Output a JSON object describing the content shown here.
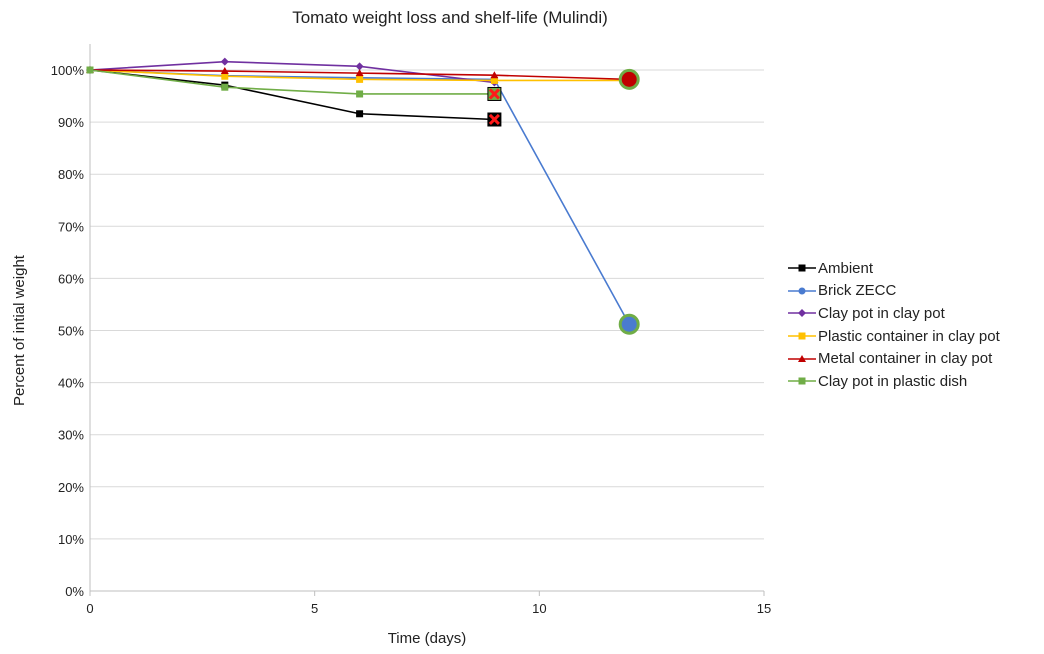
{
  "chart_data": {
    "type": "line",
    "title": "Tomato weight loss and shelf-life (Mulindi)",
    "xlabel": "Time (days)",
    "ylabel": "Percent of intial weight",
    "xlim": [
      0,
      15
    ],
    "ylim": [
      0,
      100
    ],
    "x_ticks": [
      "0",
      "5",
      "10",
      "15"
    ],
    "y_ticks": [
      "0%",
      "10%",
      "20%",
      "30%",
      "40%",
      "50%",
      "60%",
      "70%",
      "80%",
      "90%",
      "100%"
    ],
    "grid": "horizontal",
    "legend_position": "right",
    "series": [
      {
        "name": "Ambient",
        "color": "#000000",
        "marker": "square",
        "points": [
          [
            0,
            100
          ],
          [
            3,
            97.1
          ],
          [
            6,
            91.6
          ],
          [
            9,
            90.5
          ]
        ],
        "end_marker": "x"
      },
      {
        "name": "Brick ZECC",
        "color": "#4a7bd0",
        "marker": "circle",
        "points": [
          [
            0,
            100
          ],
          [
            3,
            98.9
          ],
          [
            6,
            98.5
          ],
          [
            9,
            98.2
          ],
          [
            12,
            51.2
          ]
        ],
        "end_marker": "circle"
      },
      {
        "name": "Clay pot in clay pot",
        "color": "#7030a0",
        "marker": "diamond",
        "points": [
          [
            0,
            100
          ],
          [
            3,
            101.6
          ],
          [
            6,
            100.7
          ],
          [
            9,
            97.6
          ]
        ]
      },
      {
        "name": "Plastic container in clay pot",
        "color": "#ffc000",
        "marker": "square",
        "points": [
          [
            0,
            100
          ],
          [
            3,
            98.8
          ],
          [
            6,
            98.2
          ],
          [
            9,
            98.0
          ],
          [
            12,
            98.0
          ]
        ]
      },
      {
        "name": "Metal container in clay pot",
        "color": "#c00000",
        "marker": "triangle",
        "points": [
          [
            0,
            100
          ],
          [
            3,
            99.8
          ],
          [
            6,
            99.4
          ],
          [
            9,
            99.0
          ],
          [
            12,
            98.2
          ]
        ],
        "end_marker": "circle"
      },
      {
        "name": "Clay pot in plastic dish",
        "color": "#70ad47",
        "marker": "square",
        "points": [
          [
            0,
            100
          ],
          [
            3,
            96.7
          ],
          [
            6,
            95.4
          ],
          [
            9,
            95.4
          ]
        ],
        "end_marker": "x"
      }
    ]
  }
}
